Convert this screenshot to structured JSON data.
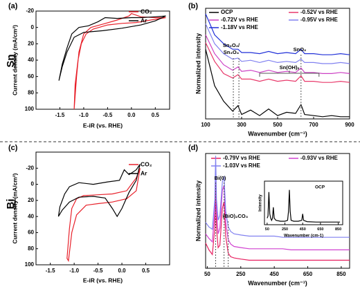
{
  "row_labels": [
    "Sn",
    "Bi"
  ],
  "chart_data": [
    {
      "type": "line",
      "panel_label": "(a)",
      "xlabel": "E-iR (vs. RHE)",
      "ylabel": "Current density (mA/cm²)",
      "xlim": [
        -2.0,
        0.8
      ],
      "xticks": [
        -1.5,
        {
          "value": -1,
          "label": "-1.0"
        },
        -0.5,
        {
          "value": 0,
          "label": "0.0"
        },
        0.5
      ],
      "ylim": [
        -20,
        100
      ],
      "y_inverted": true,
      "yticks": [
        -20,
        0,
        20,
        40,
        60,
        80,
        100
      ],
      "series": [
        {
          "name": "CO₂",
          "color": "#e8202a",
          "x": [
            0.72,
            0.5,
            0.2,
            0.0,
            -0.05,
            -0.3,
            -0.6,
            -0.85,
            -1.0,
            -1.1,
            -1.15,
            -1.2,
            -1.18,
            -1.12,
            -1.05,
            -0.95,
            -0.8,
            -0.5,
            -0.2,
            0.1,
            0.4,
            0.72
          ],
          "values": [
            -12,
            -12,
            -13,
            -17,
            -14,
            -9,
            -4,
            0,
            8,
            30,
            60,
            100,
            70,
            40,
            20,
            8,
            2,
            -3,
            -5,
            -6,
            -9,
            -12
          ]
        },
        {
          "name": "Ar",
          "color": "#000000",
          "x": [
            0.72,
            0.5,
            0.2,
            0.0,
            -0.3,
            -0.55,
            -0.7,
            -0.9,
            -1.1,
            -1.25,
            -1.35,
            -1.45,
            -1.52,
            -1.45,
            -1.35,
            -1.2,
            -1.0,
            -0.6,
            -0.2,
            0.2,
            0.5,
            0.72
          ],
          "values": [
            -14,
            -13,
            -12,
            -12,
            -11,
            -12,
            -7,
            -2,
            0,
            8,
            25,
            45,
            65,
            48,
            30,
            12,
            6,
            4,
            1,
            -3,
            -8,
            -14
          ]
        }
      ]
    },
    {
      "type": "line",
      "panel_label": "(b)",
      "xlabel": "Wavenumber (cm⁻¹)",
      "ylabel": "Normalized intensity",
      "xlim": [
        100,
        900
      ],
      "xticks": [
        100,
        300,
        500,
        700,
        900
      ],
      "ylim": [
        0,
        10
      ],
      "x": [
        100,
        150,
        200,
        250,
        280,
        300,
        350,
        400,
        450,
        500,
        550,
        600,
        630,
        650,
        700,
        750,
        800,
        850,
        900
      ],
      "series": [
        {
          "name": "OCP",
          "color": "#000000",
          "values": [
            6.3,
            3.0,
            1.6,
            0.7,
            1.2,
            0.4,
            0.8,
            0.3,
            0.9,
            0.3,
            0.6,
            0.5,
            1.3,
            0.4,
            0.3,
            0.2,
            0.3,
            0.2,
            0.2
          ]
        },
        {
          "name": "-0.52V vs RHE",
          "color": "#e8386a",
          "values": [
            6.9,
            5.2,
            4.1,
            3.7,
            4.0,
            3.6,
            3.6,
            3.4,
            3.6,
            3.4,
            3.5,
            3.4,
            3.9,
            3.4,
            3.4,
            3.3,
            3.3,
            3.4,
            3.3
          ]
        },
        {
          "name": "-0.72V vs RHE",
          "color": "#cc3fc4",
          "values": [
            7.6,
            5.9,
            4.9,
            4.4,
            4.7,
            4.3,
            4.4,
            4.2,
            4.4,
            4.2,
            4.3,
            4.2,
            4.6,
            4.2,
            4.2,
            4.1,
            4.1,
            4.2,
            4.1
          ]
        },
        {
          "name": "-0.95V vs RHE",
          "color": "#8080f0",
          "values": [
            8.6,
            6.8,
            5.9,
            5.4,
            5.5,
            5.2,
            5.3,
            5.1,
            5.3,
            5.1,
            5.2,
            5.1,
            5.4,
            5.1,
            5.1,
            5.0,
            5.0,
            5.1,
            5.0
          ]
        },
        {
          "name": "-1.18V vs RHE",
          "color": "#1f2fd8",
          "values": [
            9.5,
            7.6,
            6.8,
            6.3,
            6.3,
            6.0,
            6.0,
            5.9,
            6.1,
            5.9,
            6.0,
            5.9,
            6.3,
            5.9,
            5.9,
            5.8,
            5.8,
            5.9,
            5.8
          ]
        }
      ],
      "annotations": [
        {
          "kind": "line",
          "text": [
            "Sn₃O₂/",
            "Sn₃O₄"
          ],
          "x": [
            254,
            285
          ]
        },
        {
          "kind": "bracket",
          "text": [
            "Sn(OH)ₓ"
          ],
          "x": [
            400,
            730
          ]
        },
        {
          "kind": "line",
          "text": [
            "SnO₂"
          ],
          "x": [
            630
          ]
        }
      ]
    },
    {
      "type": "line",
      "panel_label": "(c)",
      "xlabel": "E-iR (vs. RHE)",
      "ylabel": "Current density (mA/cm²)",
      "xlim": [
        -1.8,
        1.0
      ],
      "xticks": [
        -1.5,
        {
          "value": -1,
          "label": "-1.0"
        },
        -0.5,
        {
          "value": 0,
          "label": "0.0"
        },
        0.5
      ],
      "ylim": [
        -40,
        100
      ],
      "y_inverted": true,
      "yticks": [
        -20,
        0,
        20,
        40,
        60,
        80,
        100
      ],
      "series": [
        {
          "name": "CO₂",
          "color": "#e8202a",
          "x": [
            0.38,
            0.3,
            0.1,
            -0.2,
            -0.5,
            -0.8,
            -0.95,
            -1.05,
            -1.1,
            -1.15,
            -1.12,
            -1.05,
            -0.95,
            -0.75,
            -0.5,
            -0.2,
            0.1,
            0.3,
            0.38
          ],
          "values": [
            -20,
            -8,
            8,
            12,
            13,
            14,
            18,
            30,
            55,
            92,
            95,
            60,
            38,
            26,
            24,
            22,
            18,
            8,
            -20
          ]
        },
        {
          "name": "Ar",
          "color": "#000000",
          "x": [
            0.38,
            0.3,
            0.15,
            0.05,
            -0.05,
            -0.3,
            -0.6,
            -0.9,
            -1.1,
            -1.2,
            -1.3,
            -1.33,
            -1.25,
            -1.1,
            -0.9,
            -0.6,
            -0.35,
            -0.2,
            -0.1,
            0.0,
            0.15,
            0.3,
            0.38
          ],
          "values": [
            -25,
            -18,
            -12,
            -18,
            -5,
            -3,
            0,
            -2,
            3,
            12,
            28,
            40,
            32,
            22,
            16,
            15,
            17,
            30,
            40,
            30,
            10,
            -5,
            -25
          ]
        }
      ]
    },
    {
      "type": "line",
      "panel_label": "(d)",
      "xlabel": "Wavenumber (cm⁻¹)",
      "ylabel": "Normalized intensity",
      "xlim": [
        40,
        900
      ],
      "xticks": [
        50,
        250,
        450,
        650,
        850
      ],
      "ylim": [
        0,
        10
      ],
      "x": [
        40,
        60,
        80,
        95,
        100,
        105,
        115,
        125,
        140,
        150,
        160,
        175,
        190,
        210,
        250,
        300,
        350,
        400,
        450,
        500,
        550,
        600,
        700,
        800,
        900
      ],
      "series": [
        {
          "name": "-0.79V vs RHE",
          "color": "#e82060",
          "values": [
            2.2,
            1.6,
            1.2,
            3.5,
            6.8,
            3.5,
            1.8,
            2.0,
            5.2,
            5.8,
            2.8,
            1.3,
            1.0,
            0.9,
            0.8,
            0.7,
            0.7,
            0.7,
            0.7,
            0.7,
            0.7,
            0.7,
            0.7,
            0.7,
            0.7
          ]
        },
        {
          "name": "-0.93V vs RHE",
          "color": "#d040d0",
          "values": [
            3.0,
            2.6,
            2.3,
            5.0,
            8.8,
            5.0,
            3.0,
            3.5,
            6.8,
            7.2,
            4.0,
            2.5,
            2.1,
            1.9,
            1.8,
            1.7,
            1.7,
            1.7,
            1.7,
            1.7,
            1.6,
            1.6,
            1.6,
            1.6,
            1.6
          ]
        },
        {
          "name": "-1.03V vs RHE",
          "color": "#8080f0",
          "values": [
            4.0,
            3.6,
            3.4,
            6.0,
            9.8,
            6.0,
            4.2,
            4.6,
            7.5,
            8.0,
            5.0,
            3.6,
            3.2,
            3.0,
            2.9,
            2.8,
            2.8,
            2.8,
            2.8,
            2.7,
            2.7,
            2.7,
            2.7,
            2.7,
            2.7
          ]
        }
      ],
      "annotations": [
        {
          "kind": "line",
          "text": [
            "Bi(0)"
          ],
          "x": [
            100,
            150
          ]
        },
        {
          "kind": "line",
          "text": [
            "(BiO)₂CO₃"
          ],
          "x": [
            175
          ]
        }
      ]
    },
    {
      "type": "line",
      "title": "OCP",
      "xlabel": "Wavenumber (cm-1)",
      "ylabel": "Intensity",
      "xlim": [
        20,
        900
      ],
      "xticks": [
        50,
        250,
        450,
        650,
        850
      ],
      "ylim": [
        0,
        10
      ],
      "x": [
        50,
        60,
        70,
        80,
        90,
        100,
        110,
        120,
        130,
        150,
        200,
        250,
        280,
        290,
        300,
        310,
        320,
        350,
        400,
        440,
        450,
        460,
        500,
        600,
        700,
        800,
        870
      ],
      "series": [
        {
          "color": "#000000",
          "values": [
            1.5,
            2,
            7.5,
            2.5,
            1.5,
            1,
            1.5,
            4,
            1.5,
            1,
            0.8,
            0.8,
            1,
            3,
            8,
            3,
            1,
            0.8,
            0.8,
            1,
            2.5,
            1,
            0.7,
            0.6,
            0.6,
            0.6,
            0.6
          ]
        }
      ]
    }
  ]
}
